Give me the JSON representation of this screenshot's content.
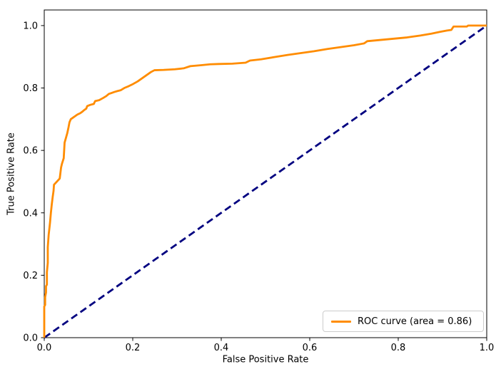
{
  "chart_data": {
    "type": "line",
    "title": "",
    "xlabel": "False Positive Rate",
    "ylabel": "True Positive Rate",
    "xlim": [
      0.0,
      1.0
    ],
    "ylim": [
      0.0,
      1.05
    ],
    "grid": false,
    "x_ticks": [
      "0.0",
      "0.2",
      "0.4",
      "0.6",
      "0.8",
      "1.0"
    ],
    "x_tick_values": [
      0.0,
      0.2,
      0.4,
      0.6,
      0.8,
      1.0
    ],
    "y_ticks": [
      "0.0",
      "0.2",
      "0.4",
      "0.6",
      "0.8",
      "1.0"
    ],
    "y_tick_values": [
      0.0,
      0.2,
      0.4,
      0.6,
      0.8,
      1.0
    ],
    "legend": {
      "position": "lower right",
      "entries": [
        {
          "label": "ROC curve (area = 0.86)",
          "color": "#ff8c00",
          "style": "solid"
        }
      ]
    },
    "series": [
      {
        "name": "chance-diagonal",
        "color": "#000080",
        "style": "dashed",
        "linewidth": 2.8,
        "points": [
          [
            0.0,
            0.0
          ],
          [
            1.0,
            1.0
          ]
        ]
      },
      {
        "name": "ROC curve (area = 0.86)",
        "color": "#ff8c00",
        "style": "solid",
        "linewidth": 2.8,
        "points": [
          [
            0.0,
            0.0
          ],
          [
            0.0,
            0.1
          ],
          [
            0.002,
            0.105
          ],
          [
            0.002,
            0.13
          ],
          [
            0.004,
            0.145
          ],
          [
            0.004,
            0.165
          ],
          [
            0.006,
            0.17
          ],
          [
            0.006,
            0.21
          ],
          [
            0.008,
            0.24
          ],
          [
            0.008,
            0.29
          ],
          [
            0.01,
            0.33
          ],
          [
            0.012,
            0.355
          ],
          [
            0.013,
            0.368
          ],
          [
            0.015,
            0.4
          ],
          [
            0.017,
            0.427
          ],
          [
            0.019,
            0.45
          ],
          [
            0.021,
            0.47
          ],
          [
            0.022,
            0.49
          ],
          [
            0.035,
            0.51
          ],
          [
            0.038,
            0.545
          ],
          [
            0.04,
            0.557
          ],
          [
            0.044,
            0.575
          ],
          [
            0.045,
            0.6
          ],
          [
            0.046,
            0.625
          ],
          [
            0.048,
            0.635
          ],
          [
            0.052,
            0.655
          ],
          [
            0.055,
            0.675
          ],
          [
            0.057,
            0.69
          ],
          [
            0.06,
            0.7
          ],
          [
            0.066,
            0.706
          ],
          [
            0.071,
            0.711
          ],
          [
            0.075,
            0.715
          ],
          [
            0.081,
            0.719
          ],
          [
            0.086,
            0.724
          ],
          [
            0.09,
            0.729
          ],
          [
            0.095,
            0.734
          ],
          [
            0.097,
            0.742
          ],
          [
            0.104,
            0.746
          ],
          [
            0.112,
            0.749
          ],
          [
            0.115,
            0.758
          ],
          [
            0.124,
            0.761
          ],
          [
            0.133,
            0.768
          ],
          [
            0.14,
            0.774
          ],
          [
            0.146,
            0.781
          ],
          [
            0.152,
            0.784
          ],
          [
            0.158,
            0.787
          ],
          [
            0.165,
            0.79
          ],
          [
            0.173,
            0.793
          ],
          [
            0.181,
            0.8
          ],
          [
            0.191,
            0.806
          ],
          [
            0.201,
            0.813
          ],
          [
            0.211,
            0.821
          ],
          [
            0.221,
            0.831
          ],
          [
            0.231,
            0.841
          ],
          [
            0.241,
            0.851
          ],
          [
            0.249,
            0.857
          ],
          [
            0.27,
            0.858
          ],
          [
            0.295,
            0.86
          ],
          [
            0.315,
            0.863
          ],
          [
            0.33,
            0.87
          ],
          [
            0.355,
            0.873
          ],
          [
            0.375,
            0.876
          ],
          [
            0.395,
            0.877
          ],
          [
            0.425,
            0.878
          ],
          [
            0.455,
            0.881
          ],
          [
            0.465,
            0.888
          ],
          [
            0.49,
            0.892
          ],
          [
            0.52,
            0.899
          ],
          [
            0.55,
            0.906
          ],
          [
            0.58,
            0.912
          ],
          [
            0.61,
            0.918
          ],
          [
            0.64,
            0.925
          ],
          [
            0.67,
            0.931
          ],
          [
            0.7,
            0.937
          ],
          [
            0.723,
            0.943
          ],
          [
            0.73,
            0.95
          ],
          [
            0.76,
            0.954
          ],
          [
            0.79,
            0.958
          ],
          [
            0.82,
            0.962
          ],
          [
            0.85,
            0.968
          ],
          [
            0.875,
            0.974
          ],
          [
            0.895,
            0.98
          ],
          [
            0.91,
            0.984
          ],
          [
            0.92,
            0.986
          ],
          [
            0.925,
            0.997
          ],
          [
            0.955,
            0.997
          ],
          [
            0.958,
            1.0
          ],
          [
            1.0,
            1.0
          ]
        ]
      }
    ]
  },
  "colors": {
    "roc_curve": "#ff8c00",
    "diagonal": "#000080",
    "spine": "#000000",
    "tick_text": "#000000",
    "legend_border": "#cccccc",
    "background": "#ffffff"
  }
}
